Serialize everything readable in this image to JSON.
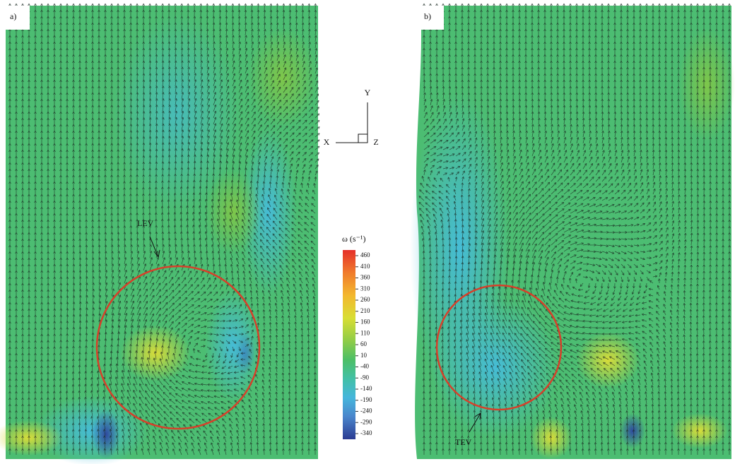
{
  "panels": [
    {
      "label": "a)",
      "annotation": "LEV"
    },
    {
      "label": "b)",
      "annotation": "TEV"
    }
  ],
  "axes": {
    "y": "Y",
    "x": "X",
    "z": "Z"
  },
  "colorbar": {
    "label": "ω (s⁻¹)",
    "lim": [
      -340,
      460
    ],
    "ticks": [
      460,
      410,
      360,
      310,
      260,
      210,
      160,
      110,
      60,
      10,
      -40,
      -90,
      -140,
      -190,
      -240,
      -290,
      -340
    ]
  }
}
